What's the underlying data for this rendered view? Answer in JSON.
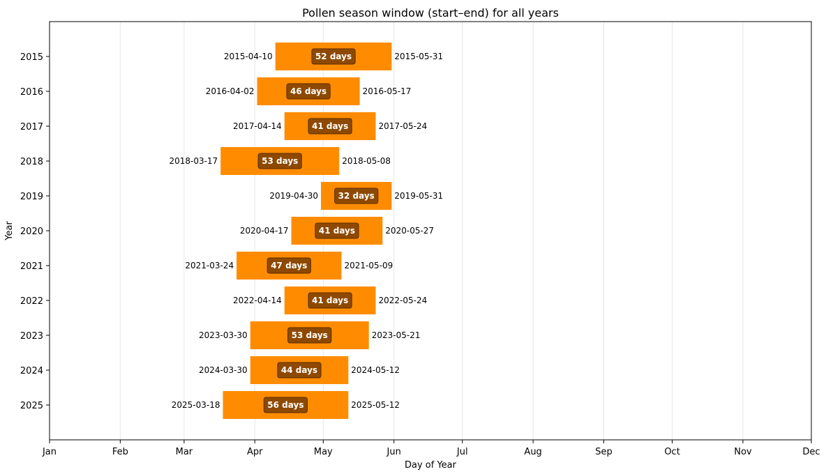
{
  "chart_data": {
    "type": "bar",
    "orientation": "horizontal",
    "title": "Pollen season window (start–end) for all years",
    "xlabel": "Day of Year",
    "ylabel": "Year",
    "x_ticks": [
      {
        "label": "Jan",
        "date": "2001-01-01"
      },
      {
        "label": "Feb",
        "date": "2001-02-01"
      },
      {
        "label": "Mar",
        "date": "2001-03-01"
      },
      {
        "label": "Apr",
        "date": "2001-04-01"
      },
      {
        "label": "May",
        "date": "2001-05-01"
      },
      {
        "label": "Jun",
        "date": "2001-06-01"
      },
      {
        "label": "Jul",
        "date": "2001-07-01"
      },
      {
        "label": "Aug",
        "date": "2001-08-01"
      },
      {
        "label": "Sep",
        "date": "2001-09-01"
      },
      {
        "label": "Oct",
        "date": "2001-10-01"
      },
      {
        "label": "Nov",
        "date": "2001-11-01"
      },
      {
        "label": "Dec",
        "date": "2001-12-01"
      }
    ],
    "xlim": [
      "2001-01-01",
      "2001-12-01"
    ],
    "grid": "vertical",
    "bar_color": "#ff8c00",
    "badge_color": "#7a3d00",
    "seasons": [
      {
        "year": "2015",
        "start": "2015-04-10",
        "end": "2015-05-31",
        "days_label": "52 days"
      },
      {
        "year": "2016",
        "start": "2016-04-02",
        "end": "2016-05-17",
        "days_label": "46 days"
      },
      {
        "year": "2017",
        "start": "2017-04-14",
        "end": "2017-05-24",
        "days_label": "41 days"
      },
      {
        "year": "2018",
        "start": "2018-03-17",
        "end": "2018-05-08",
        "days_label": "53 days"
      },
      {
        "year": "2019",
        "start": "2019-04-30",
        "end": "2019-05-31",
        "days_label": "32 days"
      },
      {
        "year": "2020",
        "start": "2020-04-17",
        "end": "2020-05-27",
        "days_label": "41 days"
      },
      {
        "year": "2021",
        "start": "2021-03-24",
        "end": "2021-05-09",
        "days_label": "47 days"
      },
      {
        "year": "2022",
        "start": "2022-04-14",
        "end": "2022-05-24",
        "days_label": "41 days"
      },
      {
        "year": "2023",
        "start": "2023-03-30",
        "end": "2023-05-21",
        "days_label": "53 days"
      },
      {
        "year": "2024",
        "start": "2024-03-30",
        "end": "2024-05-12",
        "days_label": "44 days"
      },
      {
        "year": "2025",
        "start": "2025-03-18",
        "end": "2025-05-12",
        "days_label": "56 days"
      }
    ]
  }
}
